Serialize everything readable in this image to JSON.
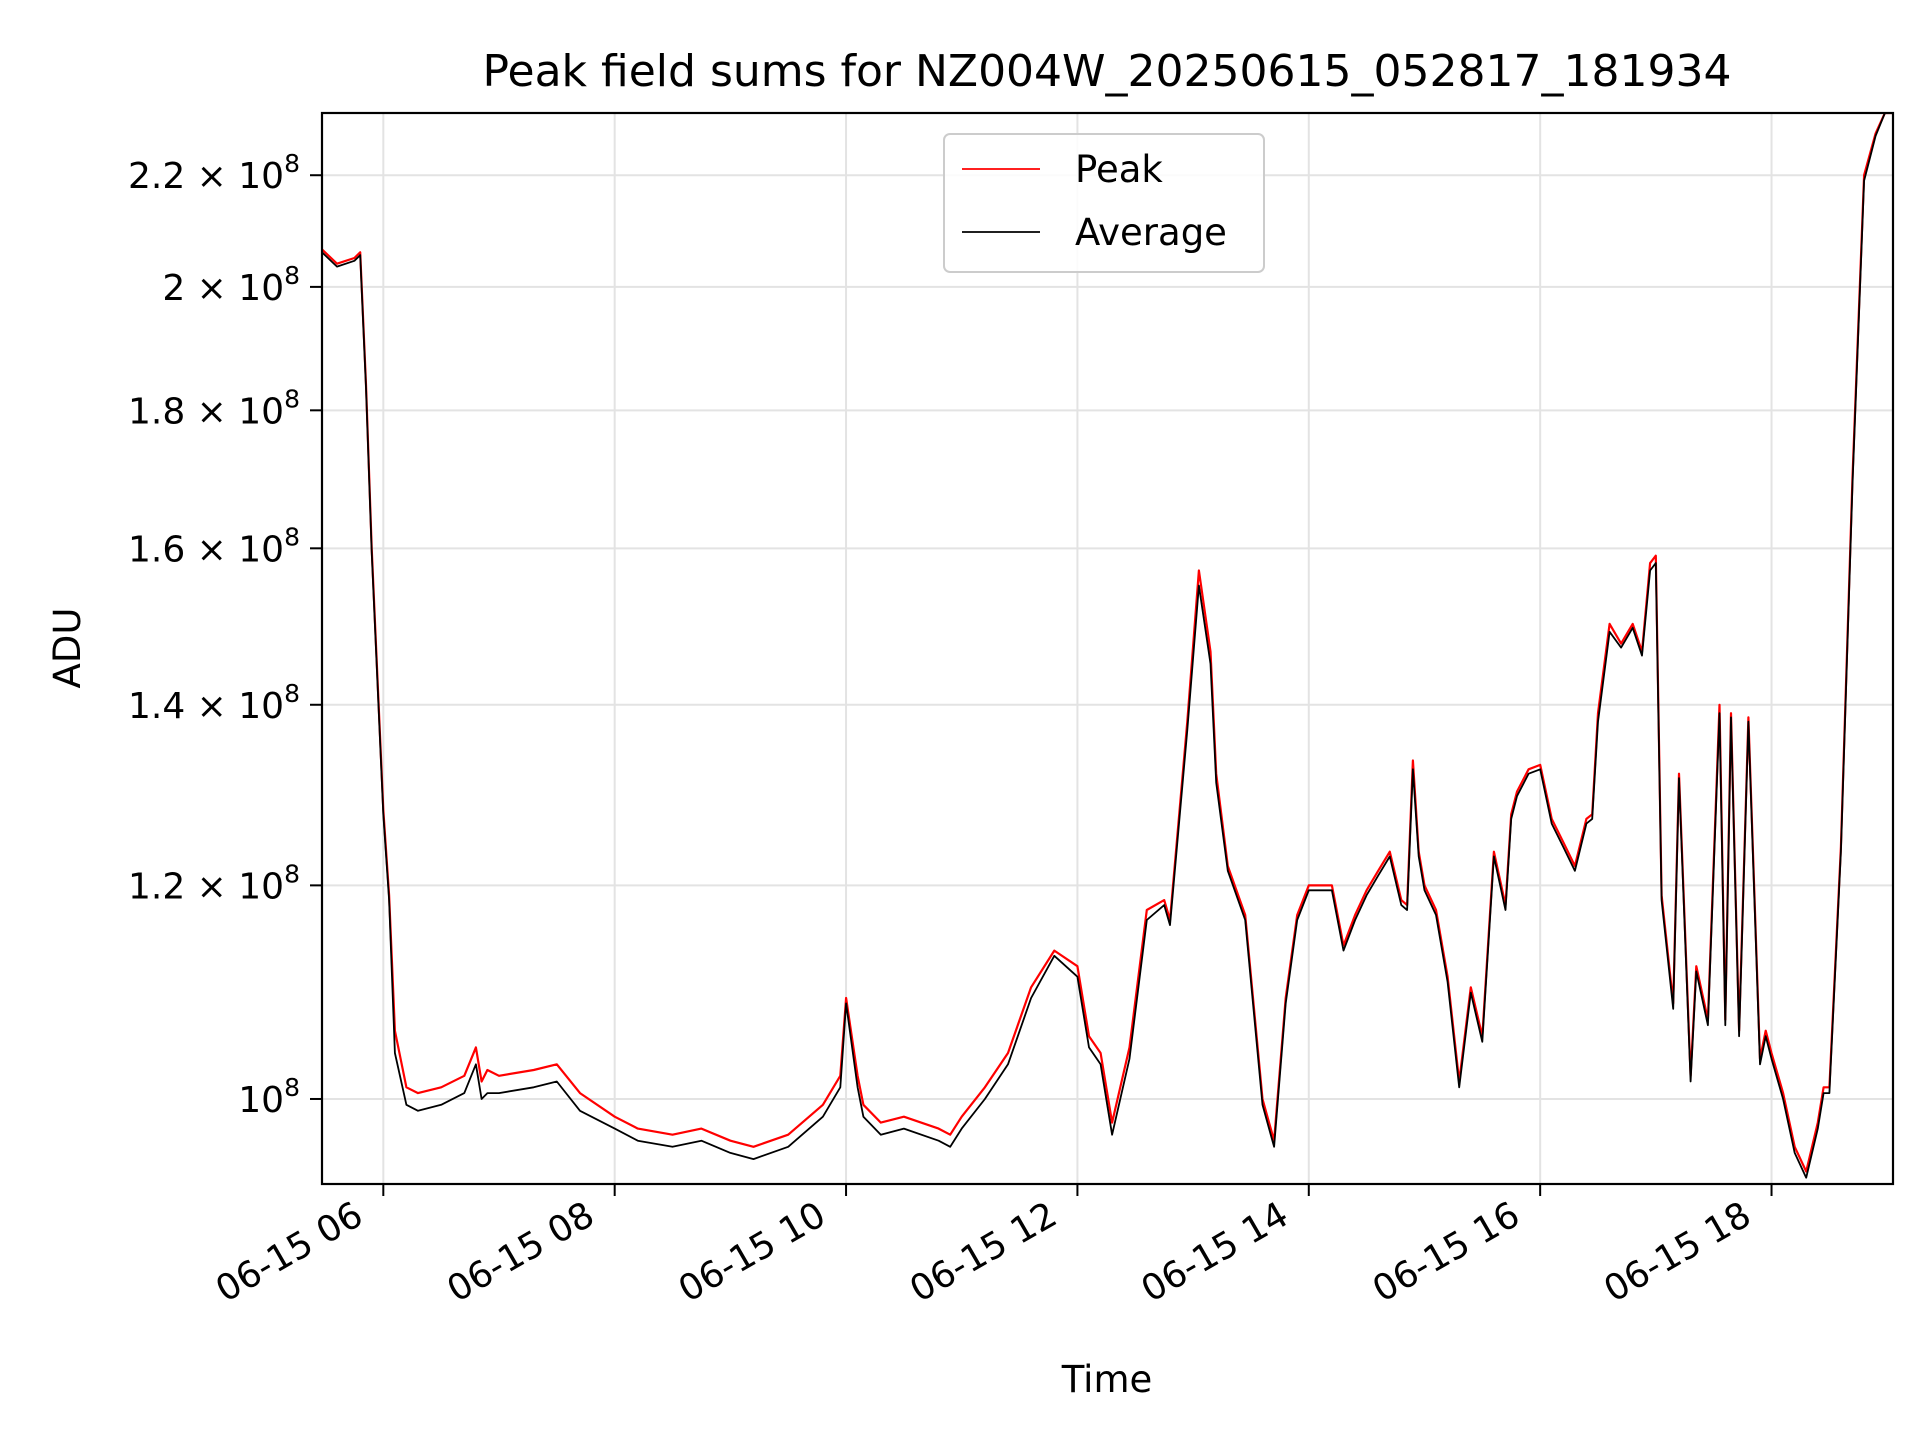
{
  "chart_data": {
    "type": "line",
    "title": "Peak field sums for NZ004W_20250615_052817_181934",
    "xlabel": "Time",
    "ylabel": "ADU",
    "x_unit": "hours",
    "xlim": [
      5.47,
      19.05
    ],
    "ylim": [
      93000000,
      232000000
    ],
    "y_scale": "log",
    "grid": true,
    "legend_position": "top-center",
    "x_ticks": [
      {
        "value": 6,
        "label": "06-15 06"
      },
      {
        "value": 8,
        "label": "06-15 08"
      },
      {
        "value": 10,
        "label": "06-15 10"
      },
      {
        "value": 12,
        "label": "06-15 12"
      },
      {
        "value": 14,
        "label": "06-15 14"
      },
      {
        "value": 16,
        "label": "06-15 16"
      },
      {
        "value": 18,
        "label": "06-15 18"
      }
    ],
    "y_ticks": [
      {
        "value": 100000000,
        "mantissa": "",
        "exp": "8"
      },
      {
        "value": 120000000,
        "mantissa": "1.2",
        "exp": "8"
      },
      {
        "value": 140000000,
        "mantissa": "1.4",
        "exp": "8"
      },
      {
        "value": 160000000,
        "mantissa": "1.6",
        "exp": "8"
      },
      {
        "value": 180000000,
        "mantissa": "1.8",
        "exp": "8"
      },
      {
        "value": 200000000,
        "mantissa": "2",
        "exp": "8"
      },
      {
        "value": 220000000,
        "mantissa": "2.2",
        "exp": "8"
      }
    ],
    "series": [
      {
        "name": "Peak",
        "color": "#ff0000",
        "x": [
          5.47,
          5.6,
          5.75,
          5.8,
          5.85,
          5.9,
          6.0,
          6.05,
          6.1,
          6.2,
          6.3,
          6.5,
          6.7,
          6.8,
          6.85,
          6.9,
          7.0,
          7.3,
          7.5,
          7.7,
          8.0,
          8.2,
          8.5,
          8.75,
          9.0,
          9.2,
          9.5,
          9.8,
          9.95,
          10.0,
          10.1,
          10.15,
          10.3,
          10.5,
          10.8,
          10.9,
          11.0,
          11.2,
          11.4,
          11.6,
          11.8,
          12.0,
          12.1,
          12.2,
          12.3,
          12.45,
          12.6,
          12.75,
          12.8,
          12.95,
          13.05,
          13.15,
          13.2,
          13.3,
          13.45,
          13.6,
          13.7,
          13.8,
          13.9,
          14.0,
          14.2,
          14.3,
          14.4,
          14.5,
          14.6,
          14.7,
          14.8,
          14.85,
          14.9,
          14.95,
          15.0,
          15.1,
          15.2,
          15.3,
          15.4,
          15.5,
          15.6,
          15.7,
          15.75,
          15.8,
          15.9,
          16.0,
          16.1,
          16.2,
          16.3,
          16.4,
          16.45,
          16.5,
          16.6,
          16.7,
          16.8,
          16.88,
          16.95,
          17.0,
          17.05,
          17.15,
          17.2,
          17.3,
          17.35,
          17.45,
          17.55,
          17.6,
          17.65,
          17.72,
          17.8,
          17.9,
          17.95,
          18.0,
          18.1,
          18.2,
          18.3,
          18.4,
          18.45,
          18.5,
          18.6,
          18.7,
          18.8,
          18.9,
          18.98,
          19.05
        ],
        "y": [
          206500000,
          204000000,
          205000000,
          206000000,
          184000000,
          160000000,
          128000000,
          119000000,
          106000000,
          101000000,
          100500000,
          101000000,
          102000000,
          104500000,
          101500000,
          102500000,
          102000000,
          102500000,
          103000000,
          100500000,
          98500000,
          97500000,
          97000000,
          97500000,
          96500000,
          96000000,
          97000000,
          99500000,
          102000000,
          109000000,
          102000000,
          99500000,
          98000000,
          98500000,
          97500000,
          97000000,
          98500000,
          101000000,
          104000000,
          110000000,
          113500000,
          112000000,
          105500000,
          104000000,
          98000000,
          104500000,
          117500000,
          118500000,
          116500000,
          138000000,
          157000000,
          146500000,
          132000000,
          122000000,
          117000000,
          100000000,
          96500000,
          109000000,
          117000000,
          120000000,
          120000000,
          114000000,
          117000000,
          119500000,
          121500000,
          123500000,
          118500000,
          118000000,
          133500000,
          123500000,
          120000000,
          117500000,
          111000000,
          101500000,
          110000000,
          105500000,
          123500000,
          118000000,
          127500000,
          130000000,
          132500000,
          133000000,
          127000000,
          124500000,
          122000000,
          127000000,
          127500000,
          139000000,
          150000000,
          147500000,
          150000000,
          146500000,
          158000000,
          159000000,
          119000000,
          108500000,
          132000000,
          102000000,
          112000000,
          107000000,
          140000000,
          107000000,
          139000000,
          106000000,
          138500000,
          103500000,
          106000000,
          104000000,
          100500000,
          96000000,
          94000000,
          98000000,
          101000000,
          101000000,
          124000000,
          170000000,
          220000000,
          228000000,
          232000000,
          232000000
        ]
      },
      {
        "name": "Average",
        "color": "#000000",
        "x": [
          5.47,
          5.6,
          5.75,
          5.8,
          5.85,
          5.9,
          6.0,
          6.05,
          6.1,
          6.2,
          6.3,
          6.5,
          6.7,
          6.8,
          6.85,
          6.9,
          7.0,
          7.3,
          7.5,
          7.7,
          8.0,
          8.2,
          8.5,
          8.75,
          9.0,
          9.2,
          9.5,
          9.8,
          9.95,
          10.0,
          10.1,
          10.15,
          10.3,
          10.5,
          10.8,
          10.9,
          11.0,
          11.2,
          11.4,
          11.6,
          11.8,
          12.0,
          12.1,
          12.2,
          12.3,
          12.45,
          12.6,
          12.75,
          12.8,
          12.95,
          13.05,
          13.15,
          13.2,
          13.3,
          13.45,
          13.6,
          13.7,
          13.8,
          13.9,
          14.0,
          14.2,
          14.3,
          14.4,
          14.5,
          14.6,
          14.7,
          14.8,
          14.85,
          14.9,
          14.95,
          15.0,
          15.1,
          15.2,
          15.3,
          15.4,
          15.5,
          15.6,
          15.7,
          15.75,
          15.8,
          15.9,
          16.0,
          16.1,
          16.2,
          16.3,
          16.4,
          16.45,
          16.5,
          16.6,
          16.7,
          16.8,
          16.88,
          16.95,
          17.0,
          17.05,
          17.15,
          17.2,
          17.3,
          17.35,
          17.45,
          17.55,
          17.6,
          17.65,
          17.72,
          17.8,
          17.9,
          17.95,
          18.0,
          18.1,
          18.2,
          18.3,
          18.4,
          18.45,
          18.5,
          18.6,
          18.7,
          18.8,
          18.9,
          18.98,
          19.05
        ],
        "y": [
          206000000,
          203500000,
          204500000,
          205500000,
          183500000,
          159500000,
          127500000,
          118500000,
          104000000,
          99500000,
          99000000,
          99500000,
          100500000,
          103000000,
          100000000,
          100500000,
          100500000,
          101000000,
          101500000,
          99000000,
          97500000,
          96500000,
          96000000,
          96500000,
          95500000,
          95000000,
          96000000,
          98500000,
          101000000,
          108500000,
          101000000,
          98500000,
          97000000,
          97500000,
          96500000,
          96000000,
          97500000,
          100000000,
          103000000,
          109000000,
          113000000,
          111000000,
          104500000,
          103000000,
          97000000,
          103500000,
          116500000,
          118000000,
          116000000,
          137000000,
          155000000,
          145000000,
          131000000,
          121500000,
          116500000,
          99500000,
          96000000,
          108500000,
          116500000,
          119500000,
          119500000,
          113500000,
          116500000,
          119000000,
          121000000,
          123000000,
          118000000,
          117500000,
          132500000,
          123000000,
          119500000,
          117000000,
          110500000,
          101000000,
          109500000,
          105000000,
          123000000,
          117500000,
          127000000,
          129500000,
          132000000,
          132500000,
          126500000,
          124000000,
          121500000,
          126500000,
          127000000,
          138000000,
          149000000,
          147000000,
          149500000,
          146000000,
          157000000,
          158000000,
          118500000,
          108000000,
          131500000,
          101500000,
          111500000,
          106500000,
          139000000,
          106500000,
          138500000,
          105500000,
          138000000,
          103000000,
          105500000,
          103500000,
          100000000,
          95500000,
          93500000,
          97500000,
          100500000,
          100500000,
          123500000,
          169000000,
          219000000,
          227500000,
          232000000,
          232000000
        ]
      }
    ]
  }
}
